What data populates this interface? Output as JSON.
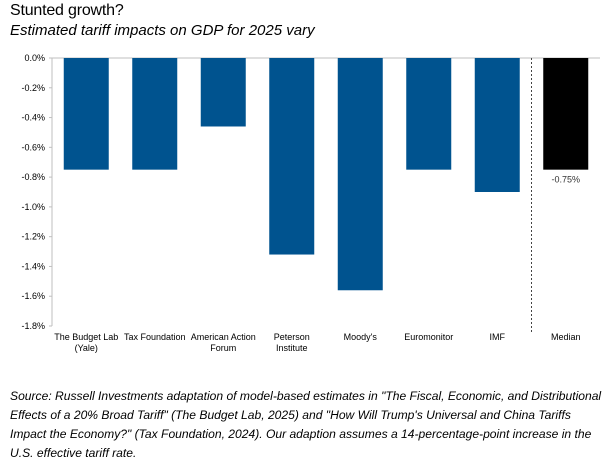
{
  "header": {
    "title": "Stunted growth?",
    "subtitle": "Estimated tariff impacts on GDP for 2025 vary"
  },
  "source_note": "Source: Russell Investments adaptation of model-based estimates in \"The Fiscal, Economic, and Distributional Effects of a 20% Broad Tariff\" (The Budget Lab, 2025) and \"How Will Trump's Universal and China Tariffs Impact the Economy?\" (Tax Foundation, 2024). Our adaption assumes a 14-percentage-point increase in the U.S. effective tariff rate.",
  "colors": {
    "bar": "#00538f",
    "median_bar": "#000000",
    "axis": "#bfbfbf",
    "divider": "#444444"
  },
  "chart_data": {
    "type": "bar",
    "categories": [
      [
        "The Budget Lab",
        "(Yale)"
      ],
      [
        "Tax Foundation"
      ],
      [
        "American Action",
        "Forum"
      ],
      [
        "Peterson",
        "Institute"
      ],
      [
        "Moody's"
      ],
      [
        "Euromonitor"
      ],
      [
        "IMF"
      ],
      [
        "Median"
      ]
    ],
    "values": [
      -0.75,
      -0.75,
      -0.46,
      -1.32,
      -1.56,
      -0.75,
      -0.9,
      -0.75
    ],
    "highlight_index": 7,
    "data_labels": [
      {
        "index": 7,
        "text": "-0.75%"
      }
    ],
    "y_ticks": [
      "0.0%",
      "-0.2%",
      "-0.4%",
      "-0.6%",
      "-0.8%",
      "-1.0%",
      "-1.2%",
      "-1.4%",
      "-1.6%",
      "-1.8%"
    ],
    "ylim": [
      -1.8,
      0.0
    ],
    "divider_before_index": 7,
    "grid": false,
    "legend": "none",
    "xlabel": "",
    "ylabel": ""
  }
}
